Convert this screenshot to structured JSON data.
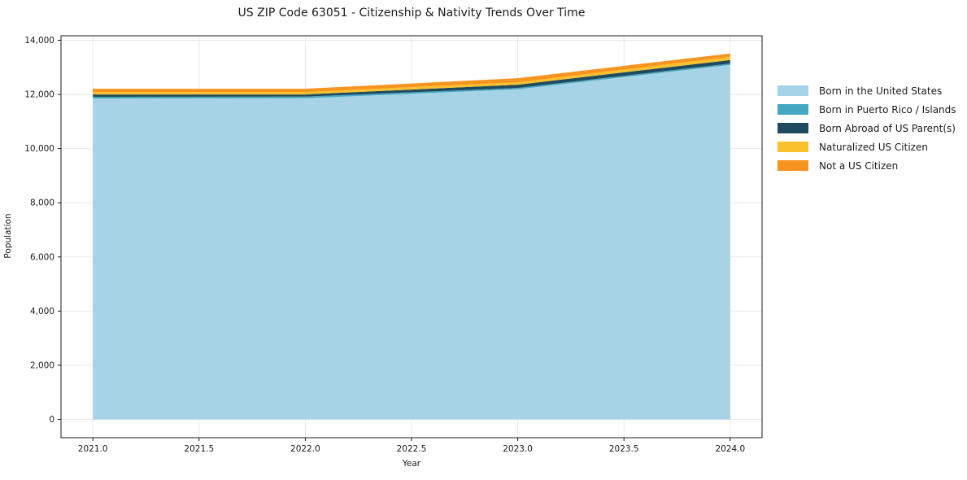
{
  "chart_data": {
    "type": "area",
    "stacked": true,
    "title": "US ZIP Code 63051 - Citizenship & Nativity Trends Over Time",
    "xlabel": "Year",
    "ylabel": "Population",
    "x": [
      2021,
      2022,
      2023,
      2024
    ],
    "series": [
      {
        "name": "Born in the United States",
        "color": "#a6d4e6",
        "values": [
          11850,
          11860,
          12190,
          13090
        ]
      },
      {
        "name": "Born in Puerto Rico / Islands",
        "color": "#46a7c2",
        "values": [
          60,
          60,
          50,
          50
        ]
      },
      {
        "name": "Born Abroad of US Parent(s)",
        "color": "#204a5e",
        "values": [
          90,
          80,
          120,
          130
        ]
      },
      {
        "name": "Naturalized US Citizen",
        "color": "#fbc12d",
        "values": [
          90,
          90,
          90,
          120
        ]
      },
      {
        "name": "Not a US Citizen",
        "color": "#f6941f",
        "values": [
          120,
          120,
          150,
          120
        ]
      }
    ],
    "x_ticks": [
      2021.0,
      2021.5,
      2022.0,
      2022.5,
      2023.0,
      2023.5,
      2024.0
    ],
    "x_tick_labels": [
      "2021.0",
      "2021.5",
      "2022.0",
      "2022.5",
      "2023.0",
      "2023.5",
      "2024.0"
    ],
    "y_ticks": [
      0,
      2000,
      4000,
      6000,
      8000,
      10000,
      12000,
      14000
    ],
    "y_tick_labels": [
      "0",
      "2,000",
      "4,000",
      "6,000",
      "8,000",
      "10,000",
      "12,000",
      "14,000"
    ],
    "xlim": [
      2020.85,
      2024.15
    ],
    "ylim": [
      -675,
      14165
    ],
    "grid": true,
    "grid_color": "#e8e8e8",
    "spine_color": "#1a1a1a",
    "legend_position": "right-outside"
  }
}
